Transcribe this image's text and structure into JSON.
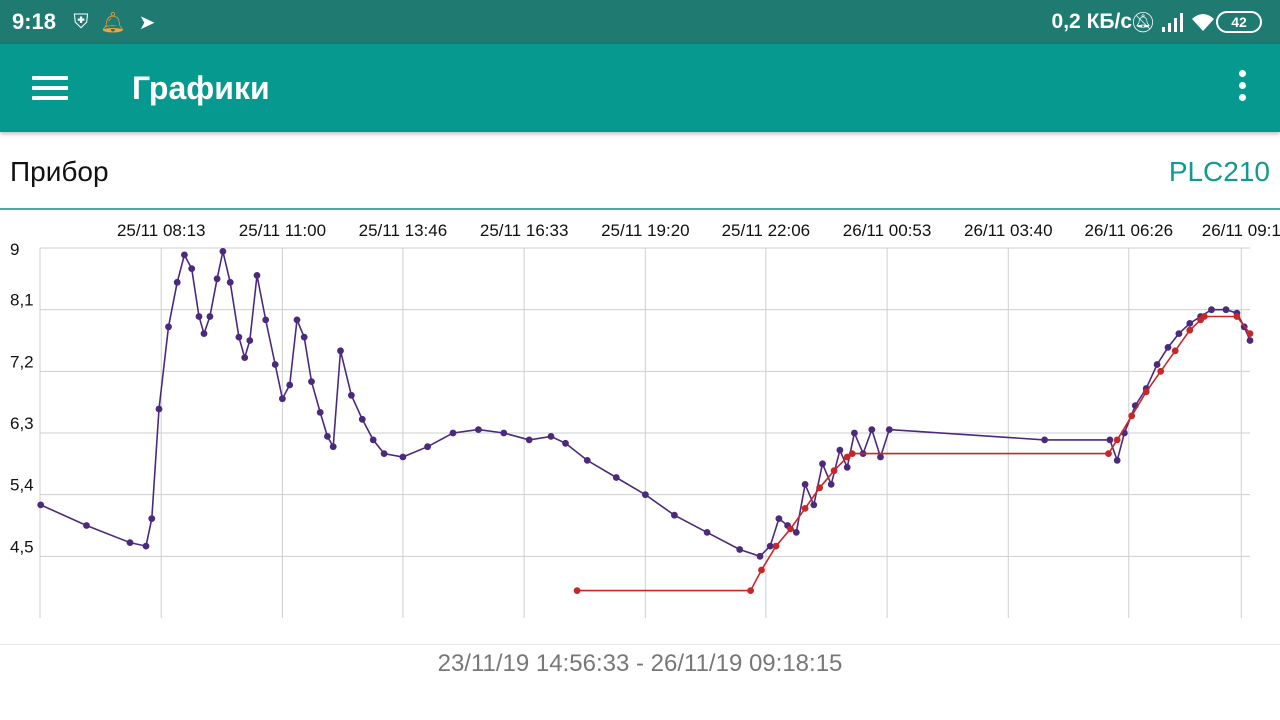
{
  "status_bar": {
    "time": "9:18",
    "left_icons": [
      "shield-bolt-icon",
      "bell-icon",
      "telegram-icon"
    ],
    "speed": "0,2 КБ/с",
    "right_icons": [
      "bell-off-icon",
      "signal-icon",
      "wifi-icon"
    ],
    "battery": "42"
  },
  "app_bar": {
    "title": "Графики",
    "menu_icon": "hamburger-menu-icon",
    "overflow_icon": "more-vert-icon"
  },
  "device": {
    "label": "Прибор",
    "value": "PLC210"
  },
  "colors": {
    "status_bar": "#1f7a72",
    "app_bar": "#05998f",
    "accent": "#139a90",
    "series_1": "#4b2a7e",
    "series_2": "#c62828",
    "grid": "#cfcfcf"
  },
  "chart_data": {
    "type": "line",
    "x_ticks": [
      "25/11 08:13",
      "25/11 11:00",
      "25/11 13:46",
      "25/11 16:33",
      "25/11 19:20",
      "25/11 22:06",
      "26/11 00:53",
      "26/11 03:40",
      "26/11 06:26",
      "26/11 09:1"
    ],
    "x_range": [
      "25/11 05:26",
      "26/11 09:13"
    ],
    "y_ticks": [
      "9",
      "8,1",
      "7,2",
      "6,3",
      "5,4",
      "4,5"
    ],
    "ylim": [
      3.6,
      9.0
    ],
    "grid": true,
    "legend": "none",
    "series": [
      {
        "color": "#4b2a7e",
        "points": [
          [
            "25/11 05:27",
            5.25
          ],
          [
            "25/11 06:30",
            4.95
          ],
          [
            "25/11 07:30",
            4.7
          ],
          [
            "25/11 07:52",
            4.65
          ],
          [
            "25/11 08:00",
            5.05
          ],
          [
            "25/11 08:10",
            6.65
          ],
          [
            "25/11 08:23",
            7.85
          ],
          [
            "25/11 08:35",
            8.5
          ],
          [
            "25/11 08:45",
            8.9
          ],
          [
            "25/11 08:55",
            8.7
          ],
          [
            "25/11 09:05",
            8.0
          ],
          [
            "25/11 09:12",
            7.75
          ],
          [
            "25/11 09:20",
            8.0
          ],
          [
            "25/11 09:30",
            8.55
          ],
          [
            "25/11 09:38",
            8.95
          ],
          [
            "25/11 09:48",
            8.5
          ],
          [
            "25/11 10:00",
            7.7
          ],
          [
            "25/11 10:08",
            7.4
          ],
          [
            "25/11 10:15",
            7.65
          ],
          [
            "25/11 10:25",
            8.6
          ],
          [
            "25/11 10:37",
            7.95
          ],
          [
            "25/11 10:50",
            7.3
          ],
          [
            "25/11 11:00",
            6.8
          ],
          [
            "25/11 11:10",
            7.0
          ],
          [
            "25/11 11:20",
            7.95
          ],
          [
            "25/11 11:30",
            7.7
          ],
          [
            "25/11 11:40",
            7.05
          ],
          [
            "25/11 11:52",
            6.6
          ],
          [
            "25/11 12:02",
            6.25
          ],
          [
            "25/11 12:10",
            6.1
          ],
          [
            "25/11 12:20",
            7.5
          ],
          [
            "25/11 12:35",
            6.85
          ],
          [
            "25/11 12:50",
            6.5
          ],
          [
            "25/11 13:05",
            6.2
          ],
          [
            "25/11 13:20",
            6.0
          ],
          [
            "25/11 13:46",
            5.95
          ],
          [
            "25/11 14:20",
            6.1
          ],
          [
            "25/11 14:55",
            6.3
          ],
          [
            "25/11 15:30",
            6.35
          ],
          [
            "25/11 16:05",
            6.3
          ],
          [
            "25/11 16:40",
            6.2
          ],
          [
            "25/11 17:10",
            6.25
          ],
          [
            "25/11 17:30",
            6.15
          ],
          [
            "25/11 18:00",
            5.9
          ],
          [
            "25/11 18:40",
            5.65
          ],
          [
            "25/11 19:20",
            5.4
          ],
          [
            "25/11 20:00",
            5.1
          ],
          [
            "25/11 20:45",
            4.85
          ],
          [
            "25/11 21:30",
            4.6
          ],
          [
            "25/11 21:58",
            4.5
          ],
          [
            "25/11 22:12",
            4.65
          ],
          [
            "25/11 22:24",
            5.05
          ],
          [
            "25/11 22:36",
            4.95
          ],
          [
            "25/11 22:48",
            4.85
          ],
          [
            "25/11 23:00",
            5.55
          ],
          [
            "25/11 23:12",
            5.25
          ],
          [
            "25/11 23:24",
            5.85
          ],
          [
            "25/11 23:36",
            5.55
          ],
          [
            "25/11 23:48",
            6.05
          ],
          [
            "25/11 23:58",
            5.8
          ],
          [
            "26/11 00:08",
            6.3
          ],
          [
            "26/11 00:20",
            6.0
          ],
          [
            "26/11 00:32",
            6.35
          ],
          [
            "26/11 00:44",
            5.95
          ],
          [
            "26/11 00:56",
            6.35
          ],
          [
            "26/11 04:30",
            6.2
          ],
          [
            "26/11 06:00",
            6.2
          ],
          [
            "26/11 06:10",
            5.9
          ],
          [
            "26/11 06:20",
            6.3
          ],
          [
            "26/11 06:35",
            6.7
          ],
          [
            "26/11 06:50",
            6.95
          ],
          [
            "26/11 07:05",
            7.3
          ],
          [
            "26/11 07:20",
            7.55
          ],
          [
            "26/11 07:35",
            7.75
          ],
          [
            "26/11 07:50",
            7.9
          ],
          [
            "26/11 08:05",
            8.0
          ],
          [
            "26/11 08:20",
            8.1
          ],
          [
            "26/11 08:40",
            8.1
          ],
          [
            "26/11 08:55",
            8.05
          ],
          [
            "26/11 09:05",
            7.85
          ],
          [
            "26/11 09:13",
            7.65
          ]
        ]
      },
      {
        "color": "#c62828",
        "points": [
          [
            "25/11 17:46",
            4.0
          ],
          [
            "25/11 21:45",
            4.0
          ],
          [
            "25/11 22:00",
            4.3
          ],
          [
            "25/11 22:20",
            4.65
          ],
          [
            "25/11 22:40",
            4.9
          ],
          [
            "25/11 23:00",
            5.2
          ],
          [
            "25/11 23:20",
            5.5
          ],
          [
            "25/11 23:40",
            5.75
          ],
          [
            "25/11 23:58",
            5.95
          ],
          [
            "26/11 00:05",
            6.0
          ],
          [
            "26/11 05:58",
            6.0
          ],
          [
            "26/11 06:10",
            6.2
          ],
          [
            "26/11 06:30",
            6.55
          ],
          [
            "26/11 06:50",
            6.9
          ],
          [
            "26/11 07:10",
            7.2
          ],
          [
            "26/11 07:30",
            7.5
          ],
          [
            "26/11 07:50",
            7.8
          ],
          [
            "26/11 08:05",
            7.95
          ],
          [
            "26/11 08:10",
            8.0
          ],
          [
            "26/11 08:55",
            8.0
          ],
          [
            "26/11 09:13",
            7.75
          ]
        ]
      }
    ]
  },
  "range_label": "23/11/19 14:56:33 - 26/11/19 09:18:15"
}
